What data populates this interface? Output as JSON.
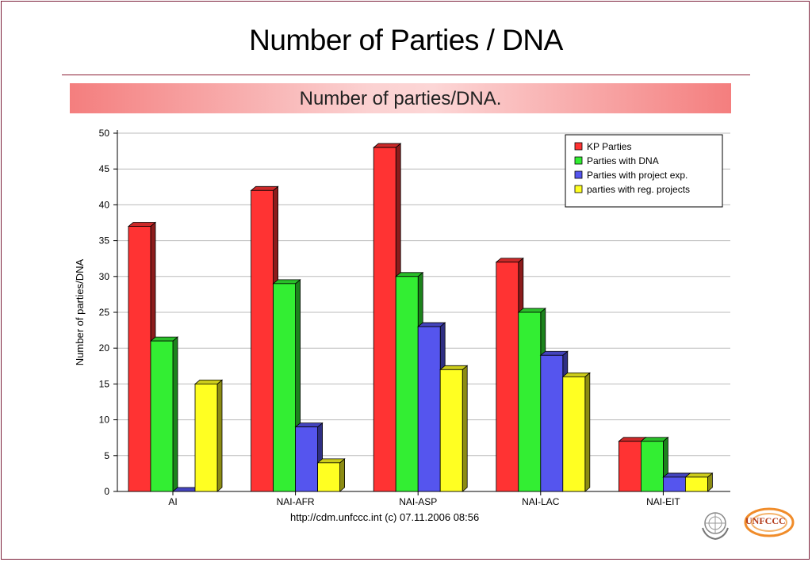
{
  "slide": {
    "title": "Number of Parties / DNA",
    "footer": "http://cdm.unfccc.int (c) 07.11.2006 08:56",
    "logo_text": "UNFCCC"
  },
  "chart_data": {
    "type": "bar",
    "title": "Number of parties/DNA.",
    "xlabel": "",
    "ylabel": "Number of parties/DNA",
    "ylim": [
      0,
      50
    ],
    "yticks": [
      0,
      5,
      10,
      15,
      20,
      25,
      30,
      35,
      40,
      45,
      50
    ],
    "grid": true,
    "legend_position": "top-right",
    "categories": [
      "AI",
      "NAI-AFR",
      "NAI-ASP",
      "NAI-LAC",
      "NAI-EIT"
    ],
    "series": [
      {
        "name": "KP Parties",
        "color": "#ff3333",
        "values": [
          37,
          42,
          48,
          32,
          7
        ]
      },
      {
        "name": "Parties with DNA",
        "color": "#33ee33",
        "values": [
          21,
          29,
          30,
          25,
          7
        ]
      },
      {
        "name": "Parties with project exp.",
        "color": "#5555ee",
        "values": [
          0,
          9,
          23,
          19,
          2
        ]
      },
      {
        "name": "parties with reg. projects",
        "color": "#ffff22",
        "values": [
          15,
          4,
          17,
          16,
          2
        ]
      }
    ]
  }
}
